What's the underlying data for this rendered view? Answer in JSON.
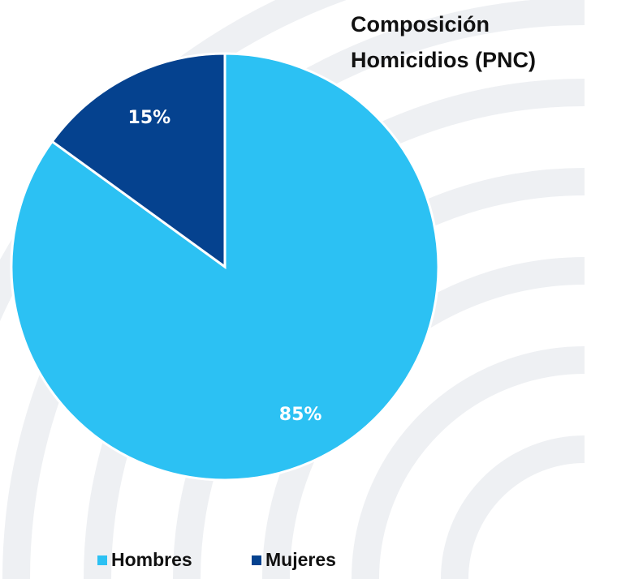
{
  "chart_data": {
    "type": "pie",
    "title": [
      "Composición",
      "Homicidios (PNC)"
    ],
    "categories": [
      "Hombres",
      "Mujeres"
    ],
    "values": [
      85,
      15
    ],
    "value_labels": [
      "85%",
      "15%"
    ],
    "colors": [
      "#2cc1f3",
      "#05428f"
    ],
    "legend": "bottom"
  }
}
